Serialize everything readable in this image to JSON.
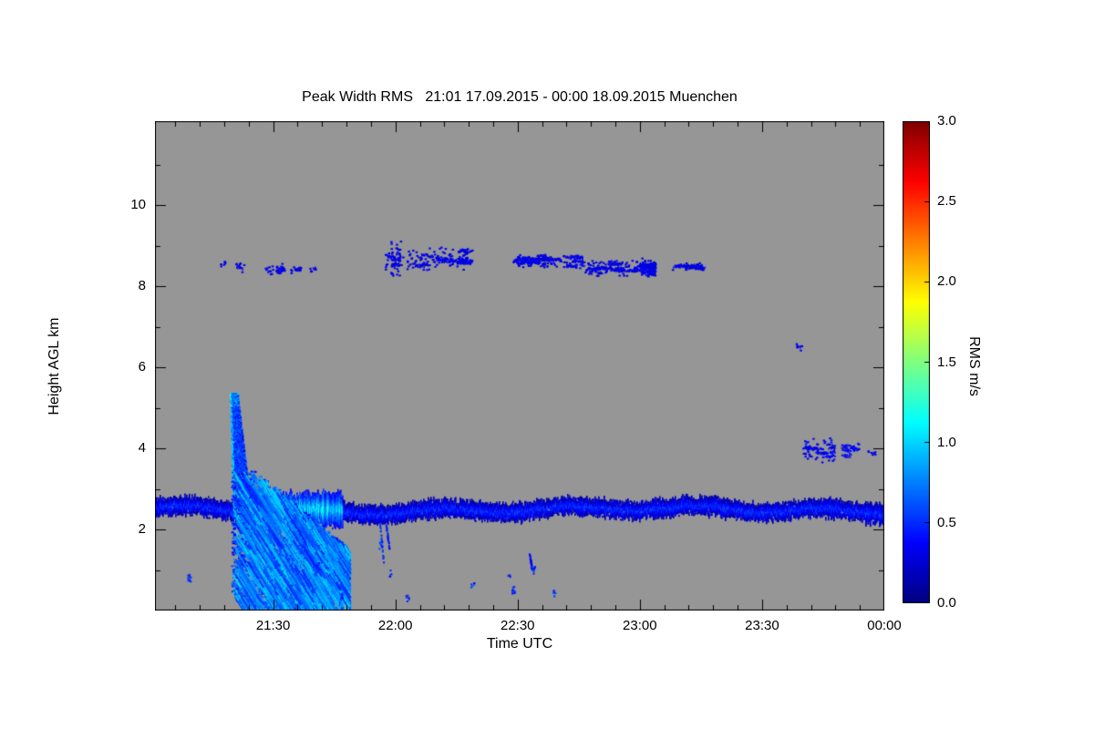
{
  "page": {
    "background": "#ffffff"
  },
  "chart_data": {
    "type": "heatmap",
    "title": "Peak Width RMS   21:01 17.09.2015 - 00:00 18.09.2015 Muenchen",
    "xlabel": "Time UTC",
    "ylabel": "Height AGL km",
    "colorbar_label": "RMS m/s",
    "time_start_label": "21:01 17.09.2015",
    "time_end_label": "00:00 18.09.2015",
    "station": "Muenchen",
    "x_total_minutes": 179,
    "x_ticks": [
      {
        "label": "21:30",
        "min": 29
      },
      {
        "label": "22:00",
        "min": 59
      },
      {
        "label": "22:30",
        "min": 89
      },
      {
        "label": "23:00",
        "min": 119
      },
      {
        "label": "23:30",
        "min": 149
      },
      {
        "label": "00:00",
        "min": 179
      }
    ],
    "x_minor_step_min": 6,
    "y_ticks": [
      {
        "label": "2",
        "km": 2
      },
      {
        "label": "4",
        "km": 4
      },
      {
        "label": "6",
        "km": 6
      },
      {
        "label": "8",
        "km": 8
      },
      {
        "label": "10",
        "km": 10
      }
    ],
    "y_minor_step_km": 1,
    "ylim": [
      0,
      12.07
    ],
    "background_color": "#969696",
    "colorbar": {
      "vmin": 0.0,
      "vmax": 3.0,
      "colormap": "jet",
      "ticks": [
        {
          "label": "0.0",
          "v": 0.0
        },
        {
          "label": "0.5",
          "v": 0.5
        },
        {
          "label": "1.0",
          "v": 1.0
        },
        {
          "label": "1.5",
          "v": 1.5
        },
        {
          "label": "2.0",
          "v": 2.0
        },
        {
          "label": "2.5",
          "v": 2.5
        },
        {
          "label": "3.0",
          "v": 3.0
        }
      ]
    },
    "features": {
      "boundary_band": {
        "description": "persistent aerosol/boundary layer echo band",
        "t0": 0,
        "t1": 179,
        "h_center": 2.5,
        "h_halfwidth": 0.2,
        "value": 0.45,
        "bright_intervals": [
          [
            20,
            46
          ]
        ],
        "bright_boost": 0.55
      },
      "plume": {
        "description": "convective plume with fall streaks reaching ground, 21:18-21:48 UTC",
        "stalk": {
          "t_base": 21.5,
          "t_top_shift": -2.0,
          "h0": 2.55,
          "h1": 5.35,
          "halfwidth_base": 2.1,
          "halfwidth_top": 0.9,
          "value": 0.55
        },
        "fan": {
          "t0": 19,
          "t1": 47,
          "h_top_start": 3.45,
          "h_top_slope": 0.085,
          "streaks": 950,
          "streak_slope": -0.16,
          "value": 0.5
        }
      },
      "cloud_patches": [
        {
          "t0": 16,
          "t1": 17.5,
          "h0": 8.45,
          "h1": 8.7,
          "v": 0.3,
          "density": 0.5
        },
        {
          "t0": 20,
          "t1": 22,
          "h0": 8.3,
          "h1": 8.65,
          "v": 0.3,
          "density": 0.5
        },
        {
          "t0": 27,
          "t1": 32,
          "h0": 8.25,
          "h1": 8.6,
          "v": 0.3,
          "density": 0.8
        },
        {
          "t0": 33,
          "t1": 36,
          "h0": 8.3,
          "h1": 8.5,
          "v": 0.3,
          "density": 0.6
        },
        {
          "t0": 38,
          "t1": 39.5,
          "h0": 8.35,
          "h1": 8.5,
          "v": 0.3,
          "density": 0.5
        },
        {
          "t0": 56.5,
          "t1": 61,
          "h0": 8.15,
          "h1": 9.15,
          "v": 0.3,
          "density": 0.6
        },
        {
          "t0": 62,
          "t1": 67,
          "h0": 8.3,
          "h1": 8.9,
          "v": 0.3,
          "density": 0.55
        },
        {
          "t0": 67,
          "t1": 78,
          "h0": 8.35,
          "h1": 9.0,
          "v": 0.3,
          "density": 0.6
        },
        {
          "t0": 88,
          "t1": 105,
          "h0": 8.4,
          "h1": 8.8,
          "v": 0.3,
          "density": 0.7
        },
        {
          "t0": 105,
          "t1": 123,
          "h0": 8.2,
          "h1": 8.7,
          "v": 0.3,
          "density": 0.85
        },
        {
          "t0": 127,
          "t1": 135,
          "h0": 8.35,
          "h1": 8.6,
          "v": 0.3,
          "density": 0.6
        },
        {
          "t0": 157.5,
          "t1": 159,
          "h0": 6.35,
          "h1": 6.65,
          "v": 0.32,
          "density": 0.6
        },
        {
          "t0": 159,
          "t1": 167,
          "h0": 3.6,
          "h1": 4.3,
          "v": 0.35,
          "density": 0.55
        },
        {
          "t0": 168,
          "t1": 173,
          "h0": 3.75,
          "h1": 4.15,
          "v": 0.35,
          "density": 0.55
        },
        {
          "t0": 175,
          "t1": 177,
          "h0": 3.8,
          "h1": 4.0,
          "v": 0.35,
          "density": 0.5
        }
      ],
      "sub_band_streaks": [
        {
          "t0": 55.3,
          "h0": 2.15,
          "t1": 56.2,
          "h1": 1.15,
          "v": 0.5
        },
        {
          "t0": 56.8,
          "h0": 2.1,
          "t1": 57.6,
          "h1": 1.5,
          "v": 0.45
        },
        {
          "t0": 92.0,
          "h0": 1.4,
          "t1": 92.6,
          "h1": 1.0,
          "v": 0.4
        }
      ],
      "low_specks": [
        {
          "t": 8.5,
          "h": 0.8
        },
        {
          "t": 39,
          "h": 0.5
        },
        {
          "t": 40,
          "h": 1.1
        },
        {
          "t": 46,
          "h": 0.35
        },
        {
          "t": 55.5,
          "h": 1.6
        },
        {
          "t": 58,
          "h": 0.9
        },
        {
          "t": 62,
          "h": 0.3
        },
        {
          "t": 78,
          "h": 0.6
        },
        {
          "t": 87,
          "h": 0.8
        },
        {
          "t": 88,
          "h": 0.5
        },
        {
          "t": 93,
          "h": 1.0
        },
        {
          "t": 98,
          "h": 0.4
        }
      ]
    }
  }
}
